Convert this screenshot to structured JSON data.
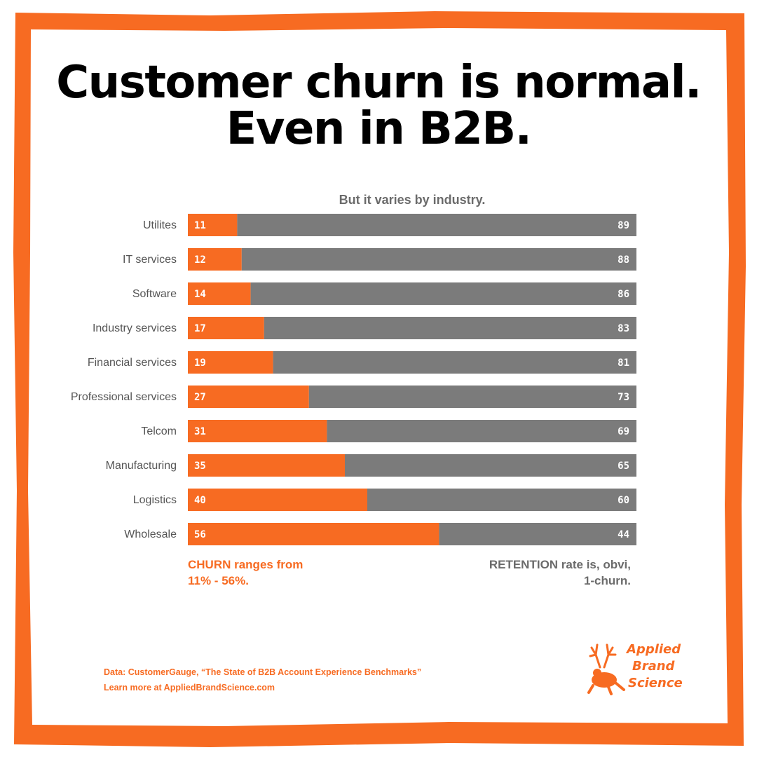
{
  "title": {
    "line1": "Customer churn is normal.",
    "line2": "Even in B2B."
  },
  "colors": {
    "churn": "#f76b22",
    "retention": "#7b7b7b",
    "frame": "#f76b22",
    "label": "#6b6b6b"
  },
  "chart_data": {
    "type": "bar",
    "stacked": true,
    "orientation": "horizontal",
    "title": "But it varies by industry.",
    "categories": [
      "Utilites",
      "IT services",
      "Software",
      "Industry services",
      "Financial services",
      "Professional services",
      "Telcom",
      "Manufacturing",
      "Logistics",
      "Wholesale"
    ],
    "series": [
      {
        "name": "Churn",
        "values": [
          11,
          12,
          14,
          17,
          19,
          27,
          31,
          35,
          40,
          56
        ]
      },
      {
        "name": "Retention",
        "values": [
          89,
          88,
          86,
          83,
          81,
          73,
          69,
          65,
          60,
          44
        ]
      }
    ],
    "xlim": [
      0,
      100
    ]
  },
  "captions": {
    "churn": [
      "CHURN ranges from",
      "11% - 56%."
    ],
    "retention": [
      "RETENTION rate is, obvi,",
      "1-churn."
    ]
  },
  "source": {
    "line1": "Data: CustomerGauge, “The State of B2B Account Experience Benchmarks”",
    "line2": "Learn more at AppliedBrandScience.com"
  },
  "logo": {
    "words": [
      "Applied",
      "Brand",
      "Science"
    ],
    "icon": "antlered-frog-icon"
  }
}
